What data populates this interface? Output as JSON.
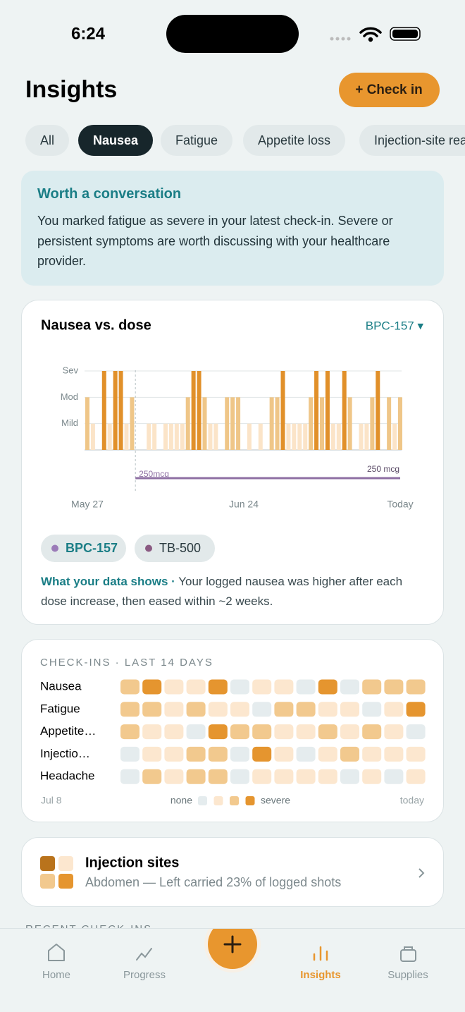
{
  "status_bar": {
    "time": "6:24"
  },
  "header": {
    "title": "Insights",
    "action": "+ Check in"
  },
  "filters": {
    "items": [
      "All",
      "Nausea",
      "Fatigue",
      "Appetite loss",
      "Injection-site reactions"
    ],
    "active": 1
  },
  "alert": {
    "title": "Worth a conversation",
    "body": "You marked fatigue as severe in your latest check-in. Severe or persistent symptoms are worth discussing with your healthcare provider."
  },
  "chart_data": {
    "type": "bar",
    "title": "Nausea vs. dose",
    "selector": "BPC-157 ▾",
    "x": [
      0,
      1,
      2,
      3,
      4,
      5,
      6,
      7,
      8,
      9,
      10,
      11,
      12,
      13,
      14,
      15,
      16,
      17,
      18,
      19,
      20,
      21,
      22,
      23,
      24,
      25,
      26,
      27,
      28,
      29,
      30,
      31,
      32,
      33,
      34,
      35,
      36,
      37,
      38,
      39,
      40,
      41,
      42,
      43,
      44,
      45,
      46,
      47,
      48,
      49,
      50,
      51,
      52,
      53,
      54,
      55,
      56
    ],
    "values": [
      2,
      1,
      null,
      3,
      1,
      3,
      3,
      1,
      2,
      null,
      null,
      1,
      1,
      null,
      1,
      1,
      1,
      1,
      2,
      3,
      3,
      2,
      1,
      1,
      null,
      2,
      2,
      2,
      null,
      1,
      null,
      1,
      null,
      2,
      2,
      3,
      1,
      1,
      1,
      1,
      2,
      3,
      2,
      3,
      1,
      1,
      3,
      2,
      null,
      1,
      1,
      2,
      3,
      null,
      2,
      1,
      2
    ],
    "colors": [
      "#fbe4c8",
      "#efc688",
      "#e1902a"
    ],
    "xlim": [
      0,
      56
    ],
    "xticks": [
      {
        "value": 0,
        "label": "May 27"
      },
      {
        "value": 28,
        "label": "Jun 24"
      },
      {
        "value": 56,
        "label": "Today"
      }
    ],
    "ylim": [
      0,
      3
    ],
    "yticks": [
      {
        "value": 1,
        "label": "Mild"
      },
      {
        "value": 2,
        "label": "Mod"
      },
      {
        "value": 3,
        "label": "Sev"
      }
    ],
    "grid": true,
    "dose": {
      "start": 8.6,
      "start_label": "250mcg",
      "end_label": "250 mcg",
      "color": "#8e6fa3"
    }
  },
  "compounds": [
    {
      "name": "BPC-157",
      "color": "#9b7bb8"
    },
    {
      "name": "TB-500",
      "color": "#8a5a82"
    }
  ],
  "insight": {
    "lead": "What your data shows ·",
    "text": " Your logged nausea was higher after each dose increase, then eased within ~2 weeks."
  },
  "checkins": {
    "title": "CHECK-INS · LAST 14 DAYS",
    "rows": [
      {
        "name": "Nausea",
        "values": [
          2,
          3,
          1,
          1,
          3,
          0,
          1,
          1,
          0,
          3,
          0,
          2,
          2,
          2
        ]
      },
      {
        "name": "Fatigue",
        "values": [
          2,
          2,
          1,
          2,
          1,
          1,
          0,
          2,
          2,
          1,
          1,
          0,
          1,
          3
        ]
      },
      {
        "name": "Appetite…",
        "values": [
          2,
          1,
          1,
          0,
          3,
          2,
          2,
          1,
          1,
          2,
          1,
          2,
          1,
          0
        ]
      },
      {
        "name": "Injectio…",
        "values": [
          0,
          1,
          1,
          2,
          2,
          0,
          3,
          1,
          0,
          1,
          2,
          1,
          1,
          1
        ]
      },
      {
        "name": "Headache",
        "values": [
          0,
          2,
          1,
          2,
          2,
          0,
          1,
          1,
          1,
          1,
          0,
          1,
          0,
          1
        ]
      }
    ],
    "colors": [
      "#e5ecee",
      "#fce7cf",
      "#f2c98e",
      "#e5952f"
    ],
    "start_label": "Jul 8",
    "end_label": "today",
    "legend_low": "none",
    "legend_high": "severe"
  },
  "injection_sites": {
    "title": "Injection sites",
    "subtitle": "Abdomen — Left carried 23% of logged shots",
    "colors": [
      "#b9731c",
      "#fce7cf",
      "#f2c98e",
      "#e5952f"
    ]
  },
  "recent": {
    "title": "RECENT CHECK-INS"
  },
  "nav": {
    "items": [
      "Home",
      "Progress",
      "Insights",
      "Supplies"
    ],
    "active": 2
  }
}
